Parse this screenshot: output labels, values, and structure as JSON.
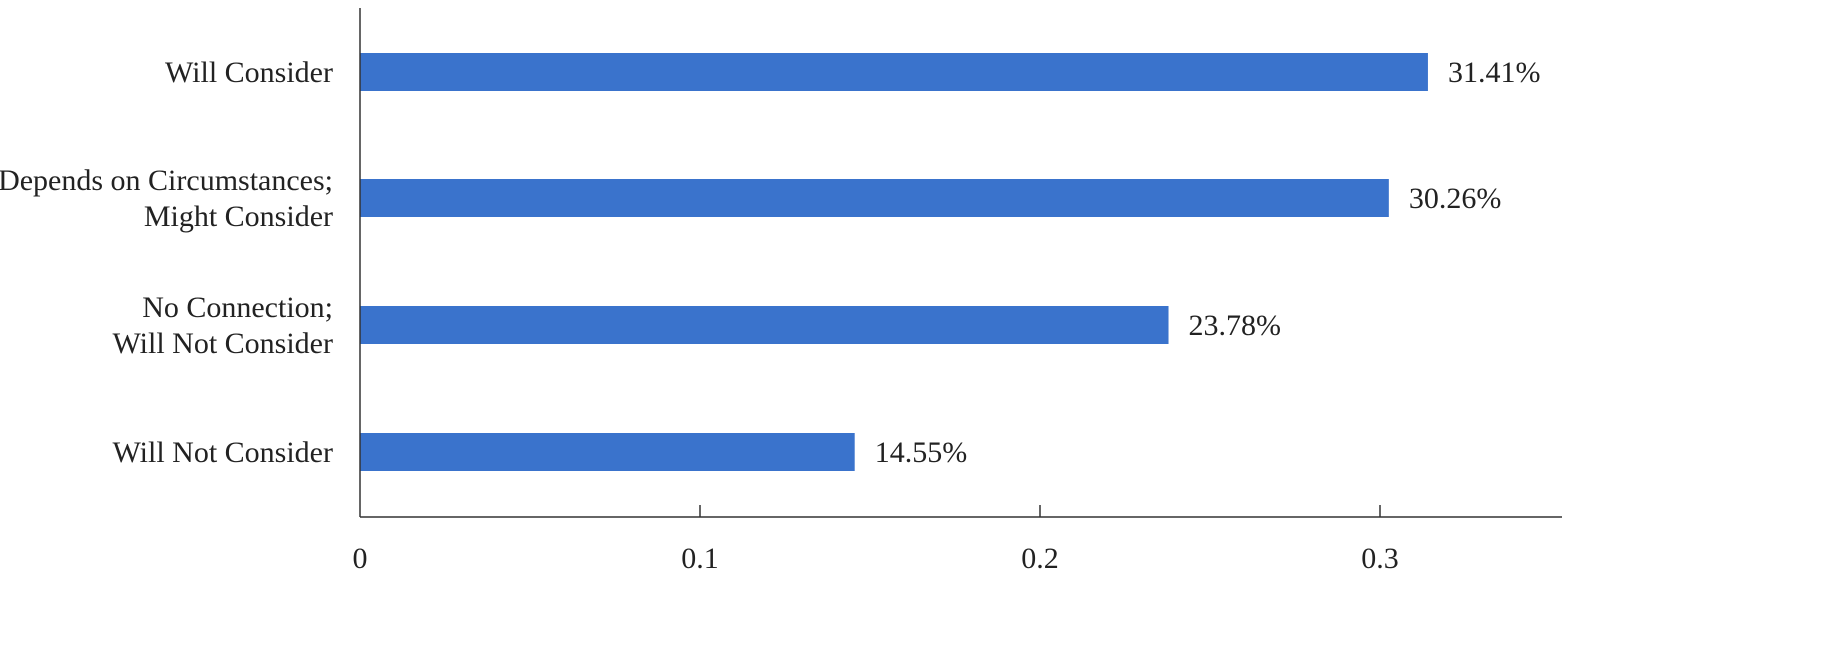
{
  "chart_data": {
    "type": "bar",
    "orientation": "horizontal",
    "categories": [
      [
        "Will Consider"
      ],
      [
        "Depends on Circumstances;",
        "Might Consider"
      ],
      [
        "No Connection;",
        "Will Not Consider"
      ],
      [
        "Will Not Consider"
      ]
    ],
    "values": [
      0.3141,
      0.3026,
      0.2378,
      0.1455
    ],
    "data_labels": [
      "31.41%",
      "30.26%",
      "23.78%",
      "14.55%"
    ],
    "x_ticks": [
      0,
      0.1,
      0.2,
      0.3
    ],
    "x_tick_labels": [
      "0",
      "0.1",
      "0.2",
      "0.3"
    ],
    "xlim": [
      0,
      0.35
    ],
    "title": "",
    "xlabel": "",
    "ylabel": "",
    "grid": false,
    "legend": "none",
    "bar_color": "#3a73cc"
  }
}
